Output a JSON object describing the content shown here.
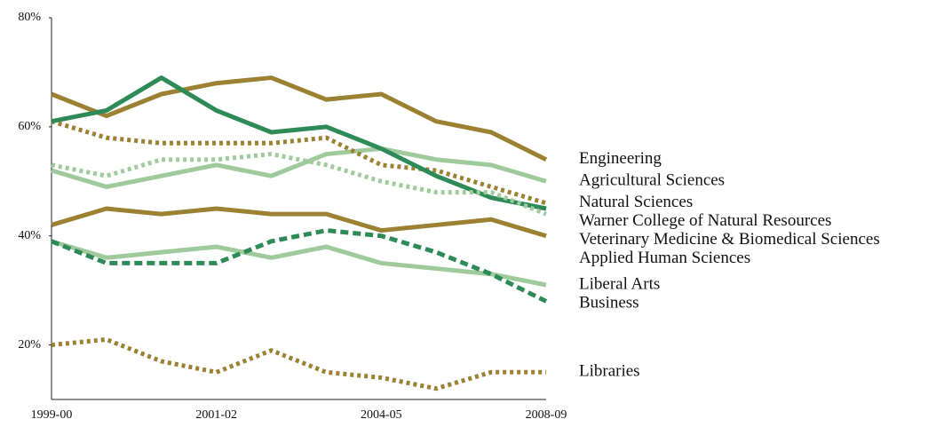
{
  "chart_data": {
    "type": "line",
    "categories": [
      "1999-00",
      null,
      null,
      "2001-02",
      null,
      null,
      "2004-05",
      null,
      null,
      "2008-09"
    ],
    "ylim": [
      10,
      80
    ],
    "yticks": [
      {
        "value": 20,
        "label": "20%"
      },
      {
        "value": 40,
        "label": "40%"
      },
      {
        "value": 60,
        "label": "60%"
      },
      {
        "value": 80,
        "label": "80%"
      }
    ],
    "series": [
      {
        "name": "Engineering",
        "color": "#9c8133",
        "style": "solid",
        "values": [
          66,
          62,
          66,
          68,
          69,
          65,
          66,
          61,
          59,
          54
        ]
      },
      {
        "name": "Agricultural Sciences",
        "color": "#9fcb9c",
        "style": "solid",
        "values": [
          52,
          49,
          51,
          53,
          51,
          55,
          56,
          54,
          53,
          50
        ]
      },
      {
        "name": "Natural Sciences",
        "color": "#9c8133",
        "style": "dotted",
        "values": [
          61,
          58,
          57,
          57,
          57,
          58,
          53,
          52,
          49,
          46
        ]
      },
      {
        "name": "Warner College of Natural Resources",
        "color": "#2e8b57",
        "style": "solid",
        "values": [
          61,
          63,
          69,
          63,
          59,
          60,
          56,
          51,
          47,
          45
        ]
      },
      {
        "name": "Veterinary Medicine & Biomedical Sciences",
        "color": "#9fcb9c",
        "style": "dotted",
        "values": [
          53,
          51,
          54,
          54,
          55,
          53,
          50,
          48,
          48,
          44
        ]
      },
      {
        "name": "Applied Human Sciences",
        "color": "#9c8133",
        "style": "solid",
        "values": [
          42,
          45,
          44,
          45,
          44,
          44,
          41,
          42,
          43,
          40
        ]
      },
      {
        "name": "Liberal Arts",
        "color": "#9fcb9c",
        "style": "solid",
        "values": [
          39,
          36,
          37,
          38,
          36,
          38,
          35,
          34,
          33,
          31
        ]
      },
      {
        "name": "Business",
        "color": "#2e8b57",
        "style": "dashed",
        "values": [
          39,
          35,
          35,
          35,
          39,
          41,
          40,
          37,
          33,
          28
        ]
      },
      {
        "name": "Libraries",
        "color": "#9c8133",
        "style": "dotted",
        "values": [
          20,
          21,
          17,
          15,
          19,
          15,
          14,
          12,
          15,
          15
        ]
      }
    ]
  }
}
